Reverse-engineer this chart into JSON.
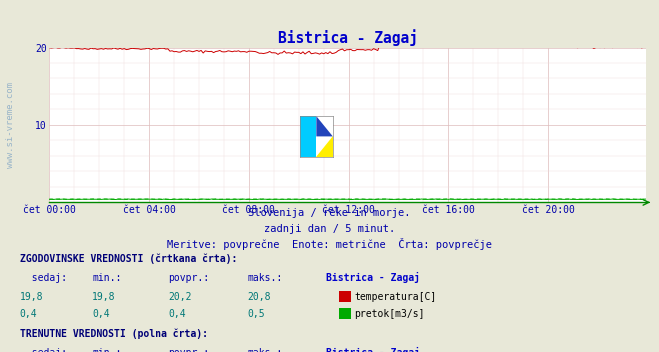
{
  "title": "Bistrica - Zagaj",
  "bg_color": "#e8e8d8",
  "plot_bg_color": "#ffffff",
  "grid_color_major": "#ddbbbb",
  "grid_color_minor": "#eedddd",
  "x_ticks_labels": [
    "čet 00:00",
    "čet 04:00",
    "čet 08:00",
    "čet 12:00",
    "čet 16:00",
    "čet 20:00"
  ],
  "x_ticks_pos": [
    0,
    48,
    96,
    144,
    192,
    240
  ],
  "total_points": 288,
  "y_min": 0,
  "y_max": 20,
  "y_ticks": [
    0,
    10,
    20
  ],
  "subtitle1": "Slovenija / reke in morje.",
  "subtitle2": "zadnji dan / 5 minut.",
  "subtitle3": "Meritve: povprečne  Enote: metrične  Črta: povprečje",
  "table_title1": "ZGODOVINSKE VREDNOSTI (črtkana črta):",
  "table_title2": "TRENUTNE VREDNOSTI (polna črta):",
  "temp_color": "#cc0000",
  "flow_color": "#00aa00",
  "axis_color": "#008800",
  "watermark_color": "#5588bb",
  "title_color": "#0000cc",
  "label_color": "#0000aa",
  "table_bold_color": "#000077",
  "table_data_color": "#007777",
  "table_black_color": "#000000"
}
